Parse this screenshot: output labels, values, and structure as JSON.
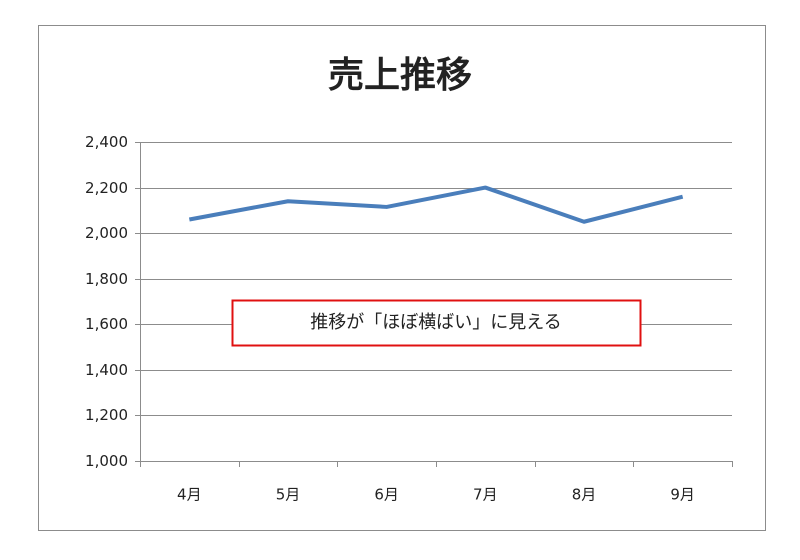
{
  "chart_data": {
    "type": "line",
    "title": "売上推移",
    "categories": [
      "4月",
      "5月",
      "6月",
      "7月",
      "8月",
      "9月"
    ],
    "series": [
      {
        "name": "売上",
        "color": "#4a7ebb",
        "values": [
          2060,
          2140,
          2115,
          2200,
          2050,
          2160
        ]
      }
    ],
    "ylim": [
      1000,
      2400
    ],
    "yticks": [
      {
        "value": 1000,
        "label": "1,000"
      },
      {
        "value": 1200,
        "label": "1,200"
      },
      {
        "value": 1400,
        "label": "1,400"
      },
      {
        "value": 1600,
        "label": "1,600"
      },
      {
        "value": 1800,
        "label": "1,800"
      },
      {
        "value": 2000,
        "label": "2,000"
      },
      {
        "value": 2200,
        "label": "2,200"
      },
      {
        "value": 2400,
        "label": "2,400"
      }
    ],
    "grid": true,
    "annotation": "推移が「ほぼ横ばい」に見える"
  }
}
